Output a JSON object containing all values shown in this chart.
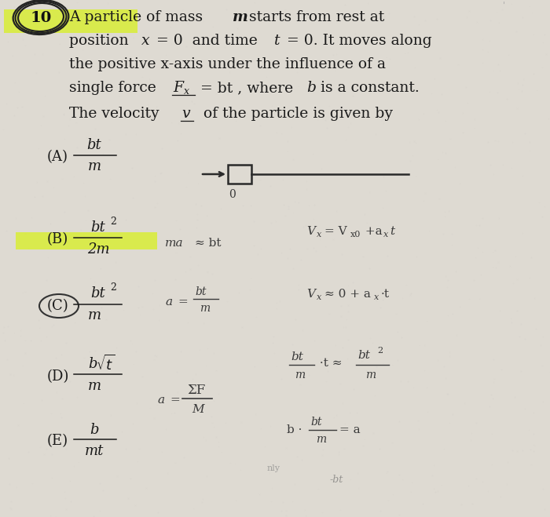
{
  "bg_color": "#d8d3c8",
  "paper_color": "#dedad3",
  "text_color": "#1a1a1a",
  "handwrite_color": "#3a3a3a",
  "yellow_highlight": "#e8f030",
  "fig_width": 7.0,
  "fig_height": 6.59,
  "dpi": 100,
  "problem_number": "10",
  "line1": "A particle of mass ",
  "line1_m": "m",
  "line1_end": " starts from rest at",
  "line2": "position ",
  "line2_x": "x",
  "line2_mid": " = 0  and time ",
  "line2_t": "t",
  "line2_end": " = 0. It moves along",
  "line3": "the positive x-axis under the influence of a",
  "line4a": "single force ",
  "line4_F": "F",
  "line4_x": "x",
  "line4b": " = bt , where ",
  "line4_b": "b",
  "line4c": " is a constant.",
  "line5a": "The velocity ",
  "line5_v": "v",
  "line5b": "  of the particle is given by",
  "choices": [
    "(A)",
    "(B)",
    "(C)",
    "(D)",
    "(E)"
  ],
  "nums": [
    "bt",
    "bt",
    "bt",
    "b√t",
    "b"
  ],
  "dens": [
    "m",
    "2m",
    "m",
    "m",
    "mt"
  ],
  "has_superscript": [
    false,
    true,
    true,
    false,
    false
  ]
}
